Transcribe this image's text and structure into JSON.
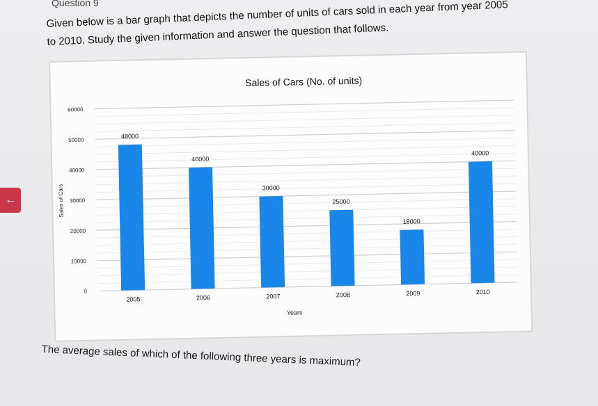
{
  "header": {
    "question_label": "Question 9",
    "intro_line1": "Given below is a bar graph that depicts the number of units of cars sold in each year from year 2005",
    "intro_line2": "to 2010. Study the given information and answer the question that follows."
  },
  "nav": {
    "back_icon": "arrow-left-icon",
    "back_glyph": "←"
  },
  "question_text": "The average sales of which of the following three years is maximum?",
  "colors": {
    "bar": "#1a86e8",
    "grid": "#d6d6d6",
    "axis_text": "#222222"
  },
  "chart_data": {
    "type": "bar",
    "title": "Sales of Cars (No. of units)",
    "xlabel": "Years",
    "ylabel": "Sales of Cars",
    "categories": [
      "2005",
      "2006",
      "2007",
      "2008",
      "2009",
      "2010"
    ],
    "values": [
      48000,
      40000,
      30000,
      25000,
      18000,
      40000
    ],
    "data_labels": [
      "48000",
      "40000",
      "30000",
      "25000",
      "18000",
      "40000"
    ],
    "ylim": [
      0,
      60000
    ],
    "yticks": [
      0,
      10000,
      20000,
      30000,
      40000,
      50000,
      60000
    ],
    "ytick_labels": [
      "0",
      "10000",
      "20000",
      "30000",
      "40000",
      "50000",
      "60000"
    ],
    "grid": true,
    "legend": "none"
  }
}
